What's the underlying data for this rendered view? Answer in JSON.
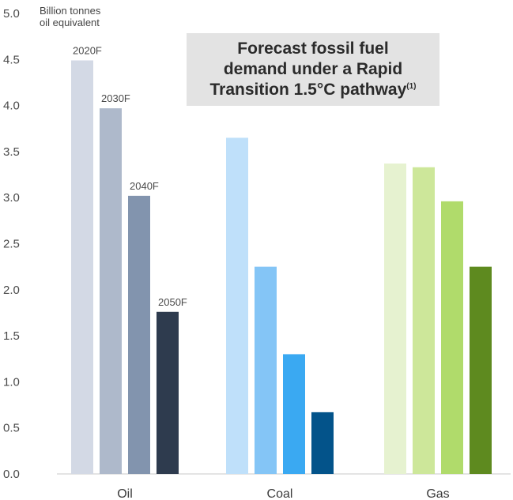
{
  "chart_data": {
    "type": "bar",
    "title_lines": [
      "Forecast fossil fuel",
      "demand under a Rapid",
      "Transition 1.5°C pathway"
    ],
    "title_footnote": "(1)",
    "ylabel_lines": [
      "Billion tonnes",
      "oil equivalent"
    ],
    "ylim": [
      0,
      5.0
    ],
    "yticks": [
      "0.0",
      "0.5",
      "1.0",
      "1.5",
      "2.0",
      "2.5",
      "3.0",
      "3.5",
      "4.0",
      "4.5",
      "5.0"
    ],
    "categories": [
      "Oil",
      "Coal",
      "Gas"
    ],
    "series": [
      {
        "name": "2020F",
        "values": [
          4.49,
          3.65,
          3.37
        ]
      },
      {
        "name": "2030F",
        "values": [
          3.97,
          2.25,
          3.33
        ]
      },
      {
        "name": "2040F",
        "values": [
          3.02,
          1.3,
          2.96
        ]
      },
      {
        "name": "2050F",
        "values": [
          1.76,
          0.67,
          2.25
        ]
      }
    ],
    "colors": {
      "Oil": [
        "#d3d9e5",
        "#aeb9cb",
        "#8294ae",
        "#2e3b4e"
      ],
      "Coal": [
        "#bfe0fa",
        "#84c5f6",
        "#3aa9f2",
        "#03538a"
      ],
      "Gas": [
        "#e6f2d0",
        "#cde79a",
        "#b0db6b",
        "#5e8a1f"
      ]
    },
    "grid": false,
    "legend": "series names labelled above the Oil bars"
  }
}
